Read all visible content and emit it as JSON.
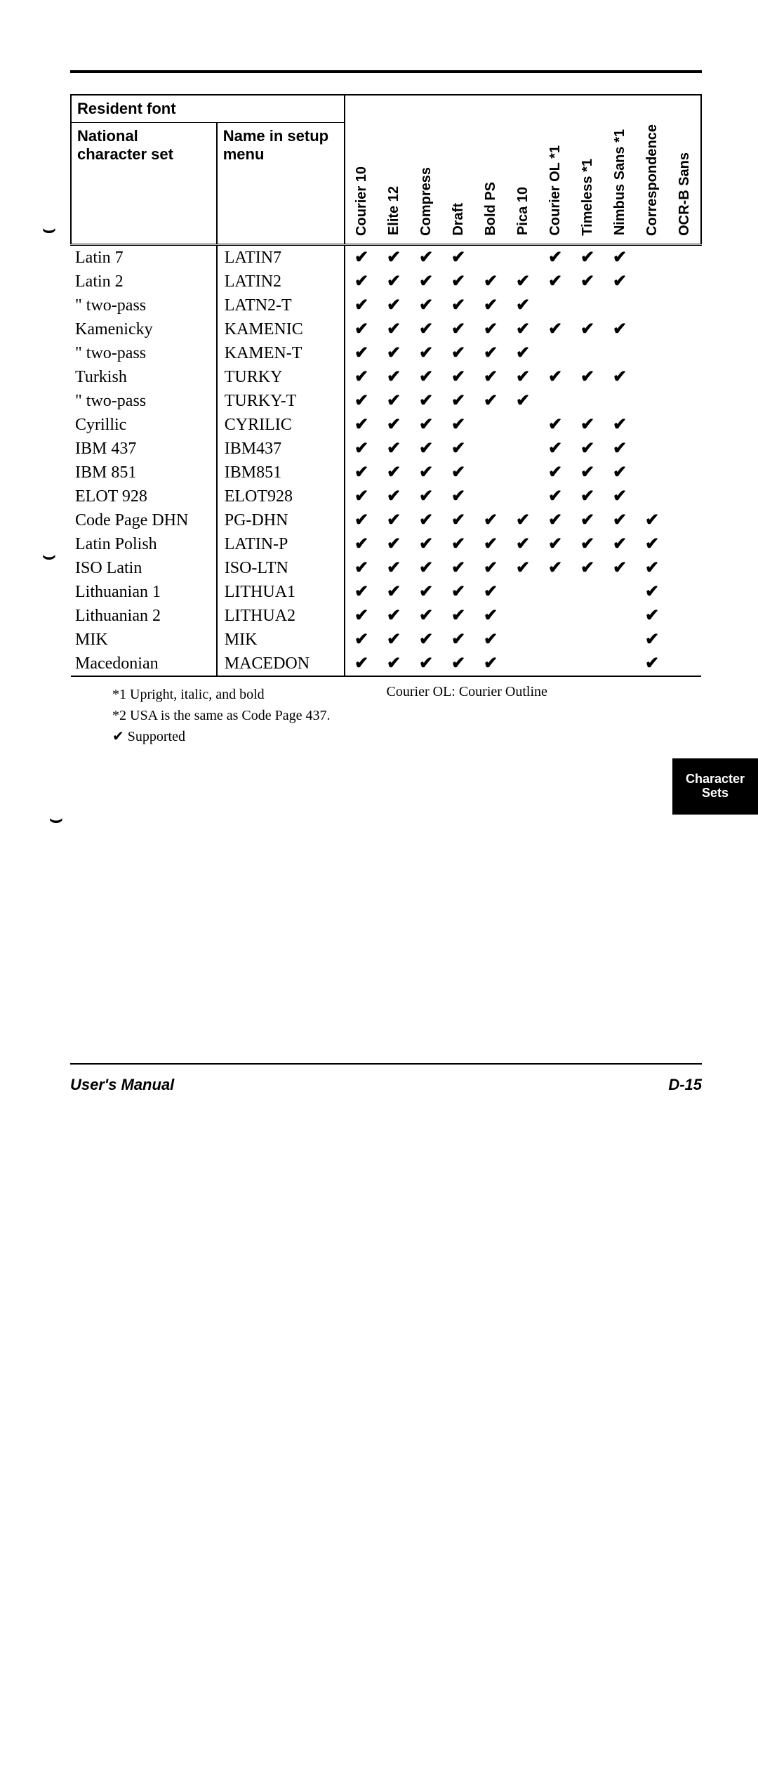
{
  "header": {
    "resident_font": "Resident font",
    "national_char_set": "National character set",
    "name_in_menu": "Name in setup menu"
  },
  "fonts": [
    "Courier 10",
    "Elite 12",
    "Compress",
    "Draft",
    "Bold PS",
    "Pica 10",
    "Courier OL *1",
    "Timeless *1",
    "Nimbus Sans *1",
    "Correspondence",
    "OCR-B Sans"
  ],
  "rows": [
    {
      "cs": "Latin 7",
      "menu": "LATIN7",
      "c": [
        1,
        1,
        1,
        1,
        0,
        0,
        1,
        1,
        1,
        0,
        0
      ]
    },
    {
      "cs": "Latin 2",
      "menu": "LATIN2",
      "c": [
        1,
        1,
        1,
        1,
        1,
        1,
        1,
        1,
        1,
        0,
        0
      ]
    },
    {
      "cs": "   \"     two-pass",
      "menu": "LATN2-T",
      "c": [
        1,
        1,
        1,
        1,
        1,
        1,
        0,
        0,
        0,
        0,
        0
      ]
    },
    {
      "cs": "Kamenicky",
      "menu": "KAMENIC",
      "c": [
        1,
        1,
        1,
        1,
        1,
        1,
        1,
        1,
        1,
        0,
        0
      ]
    },
    {
      "cs": "   \"     two-pass",
      "menu": "KAMEN-T",
      "c": [
        1,
        1,
        1,
        1,
        1,
        1,
        0,
        0,
        0,
        0,
        0
      ]
    },
    {
      "cs": "Turkish",
      "menu": "TURKY",
      "c": [
        1,
        1,
        1,
        1,
        1,
        1,
        1,
        1,
        1,
        0,
        0
      ]
    },
    {
      "cs": "   \"     two-pass",
      "menu": "TURKY-T",
      "c": [
        1,
        1,
        1,
        1,
        1,
        1,
        0,
        0,
        0,
        0,
        0
      ]
    },
    {
      "cs": "Cyrillic",
      "menu": "CYRILIC",
      "c": [
        1,
        1,
        1,
        1,
        0,
        0,
        1,
        1,
        1,
        0,
        0
      ]
    },
    {
      "cs": "IBM 437",
      "menu": "IBM437",
      "c": [
        1,
        1,
        1,
        1,
        0,
        0,
        1,
        1,
        1,
        0,
        0
      ]
    },
    {
      "cs": "IBM 851",
      "menu": "IBM851",
      "c": [
        1,
        1,
        1,
        1,
        0,
        0,
        1,
        1,
        1,
        0,
        0
      ]
    },
    {
      "cs": "ELOT 928",
      "menu": "ELOT928",
      "c": [
        1,
        1,
        1,
        1,
        0,
        0,
        1,
        1,
        1,
        0,
        0
      ]
    },
    {
      "cs": "Code Page DHN",
      "menu": "PG-DHN",
      "c": [
        1,
        1,
        1,
        1,
        1,
        1,
        1,
        1,
        1,
        1,
        0
      ]
    },
    {
      "cs": "Latin Polish",
      "menu": "LATIN-P",
      "c": [
        1,
        1,
        1,
        1,
        1,
        1,
        1,
        1,
        1,
        1,
        0
      ]
    },
    {
      "cs": "ISO Latin",
      "menu": "ISO-LTN",
      "c": [
        1,
        1,
        1,
        1,
        1,
        1,
        1,
        1,
        1,
        1,
        0
      ]
    },
    {
      "cs": "Lithuanian 1",
      "menu": "LITHUA1",
      "c": [
        1,
        1,
        1,
        1,
        1,
        0,
        0,
        0,
        0,
        1,
        0
      ]
    },
    {
      "cs": "Lithuanian 2",
      "menu": "LITHUA2",
      "c": [
        1,
        1,
        1,
        1,
        1,
        0,
        0,
        0,
        0,
        1,
        0
      ]
    },
    {
      "cs": "MIK",
      "menu": "MIK",
      "c": [
        1,
        1,
        1,
        1,
        1,
        0,
        0,
        0,
        0,
        1,
        0
      ]
    },
    {
      "cs": "Macedonian",
      "menu": "MACEDON",
      "c": [
        1,
        1,
        1,
        1,
        1,
        0,
        0,
        0,
        0,
        1,
        0
      ]
    }
  ],
  "notes": {
    "n1": "*1   Upright, italic, and bold",
    "n2": "*2   USA is the same as Code Page 437.",
    "n3": "✔   Supported",
    "right": "Courier OL: Courier Outline"
  },
  "footer": {
    "left": "User's Manual",
    "right": "D-15"
  },
  "side_tab": "Character Sets",
  "check": "✔"
}
